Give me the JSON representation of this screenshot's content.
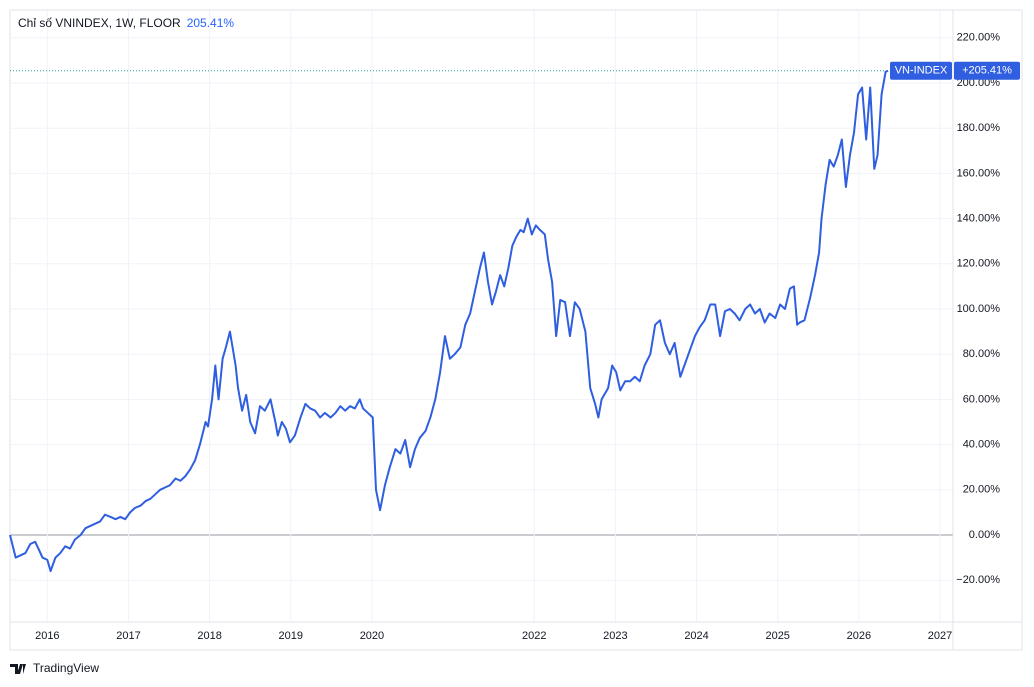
{
  "header": {
    "title": "Chỉ số VNINDEX, 1W, FLOOR",
    "value": "205.41%"
  },
  "footer": "TradingView",
  "chart_data": {
    "type": "line",
    "x": [
      2015.54,
      2015.61,
      2015.67,
      2015.73,
      2015.79,
      2015.85,
      2015.89,
      2015.94,
      2016.0,
      2016.04,
      2016.1,
      2016.16,
      2016.22,
      2016.28,
      2016.34,
      2016.41,
      2016.47,
      2016.53,
      2016.59,
      2016.65,
      2016.71,
      2016.78,
      2016.84,
      2016.9,
      2016.96,
      2017.02,
      2017.08,
      2017.15,
      2017.21,
      2017.27,
      2017.33,
      2017.39,
      2017.45,
      2017.51,
      2017.58,
      2017.64,
      2017.7,
      2017.76,
      2017.82,
      2017.88,
      2017.95,
      2017.98,
      2018.03,
      2018.07,
      2018.11,
      2018.16,
      2018.2,
      2018.25,
      2018.32,
      2018.35,
      2018.4,
      2018.45,
      2018.5,
      2018.56,
      2018.62,
      2018.68,
      2018.75,
      2018.81,
      2018.84,
      2018.89,
      2018.94,
      2018.99,
      2019.05,
      2019.12,
      2019.18,
      2019.24,
      2019.3,
      2019.36,
      2019.42,
      2019.49,
      2019.55,
      2019.61,
      2019.67,
      2019.73,
      2019.79,
      2019.85,
      2019.89,
      2019.95,
      2020.01,
      2020.05,
      2020.1,
      2020.16,
      2020.22,
      2020.29,
      2020.35,
      2020.41,
      2020.47,
      2020.53,
      2020.59,
      2020.66,
      2020.72,
      2020.78,
      2020.84,
      2020.9,
      2020.96,
      2021.02,
      2021.09,
      2021.15,
      2021.21,
      2021.27,
      2021.33,
      2021.38,
      2021.43,
      2021.48,
      2021.53,
      2021.58,
      2021.63,
      2021.68,
      2021.73,
      2021.78,
      2021.83,
      2021.87,
      2021.92,
      2021.97,
      2022.02,
      2022.07,
      2022.13,
      2022.17,
      2022.22,
      2022.27,
      2022.32,
      2022.38,
      2022.44,
      2022.5,
      2022.56,
      2022.63,
      2022.69,
      2022.75,
      2022.79,
      2022.83,
      2022.91,
      2022.96,
      2023.01,
      2023.06,
      2023.12,
      2023.18,
      2023.24,
      2023.3,
      2023.36,
      2023.43,
      2023.49,
      2023.55,
      2023.61,
      2023.67,
      2023.73,
      2023.8,
      2023.86,
      2023.92,
      2023.98,
      2024.04,
      2024.1,
      2024.17,
      2024.23,
      2024.29,
      2024.35,
      2024.41,
      2024.47,
      2024.53,
      2024.6,
      2024.66,
      2024.72,
      2024.78,
      2024.84,
      2024.9,
      2024.97,
      2025.03,
      2025.09,
      2025.15,
      2025.2,
      2025.24,
      2025.27,
      2025.33,
      2025.4,
      2025.46,
      2025.51,
      2025.54,
      2025.59,
      2025.64,
      2025.69,
      2025.74,
      2025.79,
      2025.84,
      2025.89,
      2025.94,
      2025.99,
      2026.04,
      2026.09,
      2026.14,
      2026.19,
      2026.23,
      2026.28,
      2026.33,
      2026.36
    ],
    "series": [
      {
        "name": "VN-INDEX",
        "color": "#2f5fe0",
        "badge_label": "+205.41%",
        "values": [
          0,
          -10,
          -9,
          -8,
          -4,
          -3,
          -6,
          -10,
          -11,
          -16,
          -10,
          -8,
          -5,
          -6,
          -2,
          0,
          3,
          4,
          5,
          6,
          9,
          8,
          7,
          8,
          7,
          10,
          12,
          13,
          15,
          16,
          18,
          20,
          21,
          22,
          25,
          24,
          26,
          29,
          33,
          40,
          50,
          48,
          60,
          75,
          60,
          78,
          83,
          90,
          75,
          65,
          55,
          62,
          50,
          45,
          57,
          55,
          60,
          50,
          44,
          50,
          47,
          41,
          44,
          52,
          58,
          56,
          55,
          52,
          54,
          52,
          54,
          57,
          55,
          57,
          56,
          60,
          56,
          54,
          52,
          20,
          11,
          22,
          30,
          38,
          36,
          42,
          30,
          38,
          43,
          46,
          52,
          60,
          72,
          88,
          78,
          80,
          83,
          93,
          98,
          108,
          118,
          125,
          112,
          102,
          108,
          115,
          110,
          118,
          128,
          132,
          135,
          134,
          140,
          133,
          137,
          135,
          133,
          122,
          112,
          88,
          104,
          103,
          88,
          103,
          100,
          90,
          65,
          58,
          52,
          60,
          65,
          75,
          72,
          64,
          68,
          68,
          70,
          68,
          75,
          80,
          93,
          95,
          85,
          80,
          85,
          70,
          76,
          82,
          88,
          92,
          95,
          102,
          102,
          88,
          99,
          100,
          98,
          95,
          100,
          102,
          98,
          100,
          94,
          98,
          96,
          102,
          100,
          109,
          110,
          93,
          94,
          95,
          105,
          115,
          125,
          140,
          155,
          166,
          163,
          168,
          175,
          154,
          168,
          178,
          195,
          198,
          175,
          198,
          162,
          168,
          195,
          205,
          205.41
        ]
      }
    ],
    "xlim": [
      2015.54,
      2027.16
    ],
    "xticks": [
      2016,
      2017,
      2018,
      2019,
      2020,
      2022,
      2023,
      2024,
      2025,
      2026,
      2027
    ],
    "ylim": [
      -38.5,
      232.3
    ],
    "yticks": [
      {
        "value": -20,
        "label": "−20.00%"
      },
      {
        "value": 0,
        "label": "0.00%"
      },
      {
        "value": 20,
        "label": "20.00%"
      },
      {
        "value": 40,
        "label": "40.00%"
      },
      {
        "value": 60,
        "label": "60.00%"
      },
      {
        "value": 80,
        "label": "80.00%"
      },
      {
        "value": 100,
        "label": "100.00%"
      },
      {
        "value": 120,
        "label": "120.00%"
      },
      {
        "value": 140,
        "label": "140.00%"
      },
      {
        "value": 160,
        "label": "160.00%"
      },
      {
        "value": 180,
        "label": "180.00%"
      },
      {
        "value": 200,
        "label": "200.00%"
      },
      {
        "value": 220,
        "label": "220.00%"
      }
    ],
    "grid": true
  }
}
